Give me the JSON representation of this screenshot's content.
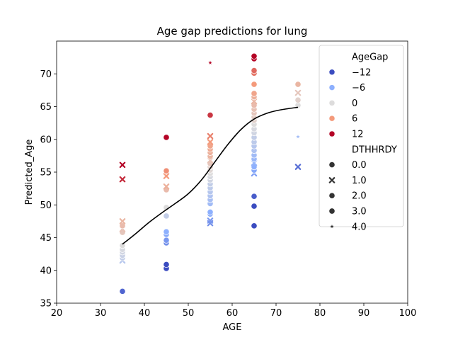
{
  "chart_data": {
    "type": "scatter",
    "title": "Age gap predictions for lung",
    "xlabel": "AGE",
    "ylabel": "Predicted_Age",
    "xlim": [
      20,
      100
    ],
    "ylim": [
      35,
      75
    ],
    "xticks": [
      "20",
      "30",
      "40",
      "50",
      "60",
      "70",
      "80",
      "90",
      "100"
    ],
    "yticks": [
      "35",
      "40",
      "45",
      "50",
      "55",
      "60",
      "65",
      "70"
    ],
    "legend": {
      "placement": "upper-right",
      "hue_title": "AgeGap",
      "hue_entries": [
        {
          "label": "−12",
          "color": "#3b4cc0"
        },
        {
          "label": "−6",
          "color": "#8db0fe"
        },
        {
          "label": "0",
          "color": "#dddcdc"
        },
        {
          "label": "6",
          "color": "#f49a7b"
        },
        {
          "label": "12",
          "color": "#b40426"
        }
      ],
      "style_title": "DTHHRDY",
      "style_entries": [
        {
          "label": "0.0",
          "marker": "circle"
        },
        {
          "label": "1.0",
          "marker": "x"
        },
        {
          "label": "2.0",
          "marker": "circle"
        },
        {
          "label": "3.0",
          "marker": "circle"
        },
        {
          "label": "4.0",
          "marker": "star"
        }
      ]
    },
    "points": [
      {
        "x": 35,
        "y": 36.8,
        "gap": -10.5,
        "m": "circle"
      },
      {
        "x": 35,
        "y": 41.5,
        "gap": -3,
        "m": "x"
      },
      {
        "x": 35,
        "y": 41.9,
        "gap": -2,
        "m": "circle"
      },
      {
        "x": 35,
        "y": 42.3,
        "gap": -1.5,
        "m": "circle"
      },
      {
        "x": 35,
        "y": 42.8,
        "gap": -1,
        "m": "circle"
      },
      {
        "x": 35,
        "y": 43.2,
        "gap": -0.5,
        "m": "circle"
      },
      {
        "x": 35,
        "y": 43.8,
        "gap": 0,
        "m": "circle"
      },
      {
        "x": 35,
        "y": 45.8,
        "gap": 2,
        "m": "circle"
      },
      {
        "x": 35,
        "y": 46.3,
        "gap": 2.5,
        "m": "x"
      },
      {
        "x": 35,
        "y": 46.8,
        "gap": 3,
        "m": "circle"
      },
      {
        "x": 35,
        "y": 47.5,
        "gap": 3.5,
        "m": "x"
      },
      {
        "x": 35,
        "y": 53.9,
        "gap": 10.5,
        "m": "x"
      },
      {
        "x": 35,
        "y": 56.1,
        "gap": 12,
        "m": "x"
      },
      {
        "x": 45,
        "y": 40.3,
        "gap": -13,
        "m": "circle"
      },
      {
        "x": 45,
        "y": 40.9,
        "gap": -12,
        "m": "circle"
      },
      {
        "x": 45,
        "y": 44.2,
        "gap": -8,
        "m": "circle"
      },
      {
        "x": 45,
        "y": 44.6,
        "gap": -7.5,
        "m": "circle"
      },
      {
        "x": 45,
        "y": 45.5,
        "gap": -6.5,
        "m": "circle"
      },
      {
        "x": 45,
        "y": 45.9,
        "gap": -6,
        "m": "circle"
      },
      {
        "x": 45,
        "y": 48.3,
        "gap": -2,
        "m": "circle"
      },
      {
        "x": 45,
        "y": 49.6,
        "gap": 0,
        "m": "circle"
      },
      {
        "x": 45,
        "y": 52.3,
        "gap": 3,
        "m": "circle"
      },
      {
        "x": 45,
        "y": 52.8,
        "gap": 4,
        "m": "x"
      },
      {
        "x": 45,
        "y": 54.4,
        "gap": 6,
        "m": "x"
      },
      {
        "x": 45,
        "y": 55.2,
        "gap": 6.5,
        "m": "circle"
      },
      {
        "x": 45,
        "y": 60.3,
        "gap": 13,
        "m": "circle"
      },
      {
        "x": 55,
        "y": 47.2,
        "gap": -8,
        "m": "x"
      },
      {
        "x": 55,
        "y": 47.6,
        "gap": -7.5,
        "m": "x"
      },
      {
        "x": 55,
        "y": 48.6,
        "gap": -6.5,
        "m": "circle"
      },
      {
        "x": 55,
        "y": 48.9,
        "gap": -6,
        "m": "circle"
      },
      {
        "x": 55,
        "y": 50.2,
        "gap": -4.5,
        "m": "circle"
      },
      {
        "x": 55,
        "y": 50.8,
        "gap": -4,
        "m": "circle"
      },
      {
        "x": 55,
        "y": 51.4,
        "gap": -3.5,
        "m": "circle"
      },
      {
        "x": 55,
        "y": 52.0,
        "gap": -3,
        "m": "circle"
      },
      {
        "x": 55,
        "y": 52.6,
        "gap": -2.5,
        "m": "circle"
      },
      {
        "x": 55,
        "y": 53.2,
        "gap": -2,
        "m": "circle"
      },
      {
        "x": 55,
        "y": 53.8,
        "gap": -1,
        "m": "circle"
      },
      {
        "x": 55,
        "y": 54.3,
        "gap": -0.5,
        "m": "circle"
      },
      {
        "x": 55,
        "y": 54.8,
        "gap": 0,
        "m": "circle"
      },
      {
        "x": 55,
        "y": 55.3,
        "gap": 0.5,
        "m": "circle"
      },
      {
        "x": 55,
        "y": 55.8,
        "gap": 1,
        "m": "circle"
      },
      {
        "x": 55,
        "y": 56.3,
        "gap": 2,
        "m": "circle"
      },
      {
        "x": 55,
        "y": 56.8,
        "gap": 2.5,
        "m": "x"
      },
      {
        "x": 55,
        "y": 57.4,
        "gap": 3.5,
        "m": "circle"
      },
      {
        "x": 55,
        "y": 58.0,
        "gap": 4,
        "m": "circle"
      },
      {
        "x": 55,
        "y": 58.5,
        "gap": 4.5,
        "m": "circle"
      },
      {
        "x": 55,
        "y": 59.0,
        "gap": 5,
        "m": "circle"
      },
      {
        "x": 55,
        "y": 59.6,
        "gap": 6,
        "m": "x"
      },
      {
        "x": 55,
        "y": 60.5,
        "gap": 7,
        "m": "x"
      },
      {
        "x": 55,
        "y": 63.7,
        "gap": 10,
        "m": "circle"
      },
      {
        "x": 55,
        "y": 71.7,
        "gap": 17,
        "m": "star"
      },
      {
        "x": 65,
        "y": 46.8,
        "gap": -14,
        "m": "circle"
      },
      {
        "x": 65,
        "y": 49.8,
        "gap": -12,
        "m": "circle"
      },
      {
        "x": 65,
        "y": 51.3,
        "gap": -11,
        "m": "circle"
      },
      {
        "x": 65,
        "y": 54.8,
        "gap": -7,
        "m": "x"
      },
      {
        "x": 65,
        "y": 55.3,
        "gap": -6.5,
        "m": "circle"
      },
      {
        "x": 65,
        "y": 55.8,
        "gap": -6,
        "m": "circle"
      },
      {
        "x": 65,
        "y": 56.4,
        "gap": -5.5,
        "m": "x"
      },
      {
        "x": 65,
        "y": 57.0,
        "gap": -5,
        "m": "circle"
      },
      {
        "x": 65,
        "y": 57.6,
        "gap": -4.5,
        "m": "circle"
      },
      {
        "x": 65,
        "y": 58.3,
        "gap": -3.5,
        "m": "circle"
      },
      {
        "x": 65,
        "y": 59.0,
        "gap": -3,
        "m": "circle"
      },
      {
        "x": 65,
        "y": 59.6,
        "gap": -2.5,
        "m": "circle"
      },
      {
        "x": 65,
        "y": 60.3,
        "gap": -2,
        "m": "circle"
      },
      {
        "x": 65,
        "y": 61.0,
        "gap": -1,
        "m": "circle"
      },
      {
        "x": 65,
        "y": 61.6,
        "gap": -0.5,
        "m": "circle"
      },
      {
        "x": 65,
        "y": 62.3,
        "gap": 0,
        "m": "circle"
      },
      {
        "x": 65,
        "y": 62.9,
        "gap": 1,
        "m": "circle"
      },
      {
        "x": 65,
        "y": 63.4,
        "gap": 1.5,
        "m": "circle"
      },
      {
        "x": 65,
        "y": 64.0,
        "gap": 2,
        "m": "circle"
      },
      {
        "x": 65,
        "y": 64.6,
        "gap": 2.5,
        "m": "circle"
      },
      {
        "x": 65,
        "y": 65.2,
        "gap": 3,
        "m": "circle"
      },
      {
        "x": 65,
        "y": 65.8,
        "gap": 3.5,
        "m": "x"
      },
      {
        "x": 65,
        "y": 66.5,
        "gap": 4,
        "m": "circle"
      },
      {
        "x": 65,
        "y": 67.0,
        "gap": 5,
        "m": "circle"
      },
      {
        "x": 65,
        "y": 68.4,
        "gap": 6,
        "m": "circle"
      },
      {
        "x": 65,
        "y": 70.1,
        "gap": 7.5,
        "m": "circle"
      },
      {
        "x": 65,
        "y": 70.5,
        "gap": 8,
        "m": "circle"
      },
      {
        "x": 65,
        "y": 72.3,
        "gap": 15,
        "m": "circle"
      },
      {
        "x": 65,
        "y": 72.7,
        "gap": 15.5,
        "m": "circle"
      },
      {
        "x": 75,
        "y": 55.8,
        "gap": -10,
        "m": "x"
      },
      {
        "x": 75,
        "y": 60.4,
        "gap": -4.5,
        "m": "star"
      },
      {
        "x": 75,
        "y": 65.2,
        "gap": 0,
        "m": "circle"
      },
      {
        "x": 75,
        "y": 66.0,
        "gap": 1,
        "m": "circle"
      },
      {
        "x": 75,
        "y": 67.1,
        "gap": 2,
        "m": "x"
      },
      {
        "x": 75,
        "y": 68.4,
        "gap": 3.5,
        "m": "circle"
      }
    ],
    "trend_line": {
      "color": "#000000",
      "x": [
        35,
        38,
        41,
        44,
        47,
        50,
        53,
        56,
        59,
        62,
        65,
        68,
        71,
        75
      ],
      "y": [
        44.0,
        45.6,
        47.3,
        48.8,
        50.2,
        51.7,
        53.8,
        56.5,
        59.2,
        61.5,
        63.1,
        64.0,
        64.5,
        64.9
      ]
    }
  }
}
